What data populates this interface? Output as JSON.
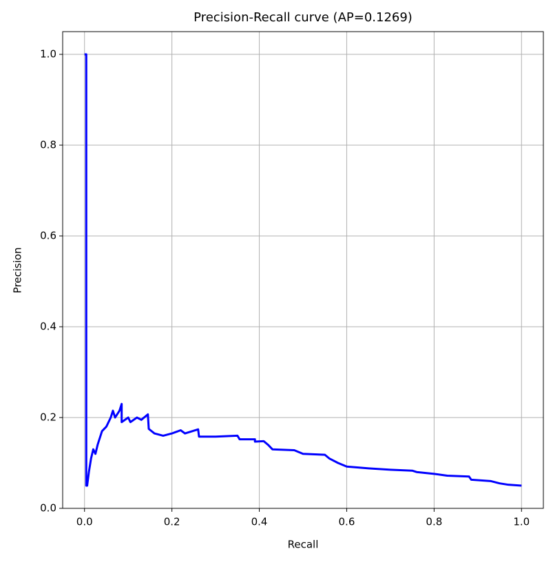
{
  "chart_data": {
    "type": "line",
    "title": "Precision-Recall curve (AP=0.1269)",
    "x_label": "Recall",
    "y_label": "Precision",
    "x": [
      0.0,
      0.004,
      0.004,
      0.006,
      0.01,
      0.015,
      0.02,
      0.025,
      0.03,
      0.04,
      0.05,
      0.06,
      0.065,
      0.07,
      0.08,
      0.085,
      0.085,
      0.1,
      0.105,
      0.12,
      0.13,
      0.145,
      0.147,
      0.16,
      0.18,
      0.2,
      0.22,
      0.23,
      0.26,
      0.262,
      0.3,
      0.35,
      0.355,
      0.39,
      0.39,
      0.41,
      0.42,
      0.43,
      0.48,
      0.5,
      0.55,
      0.56,
      0.58,
      0.6,
      0.65,
      0.7,
      0.75,
      0.76,
      0.8,
      0.83,
      0.88,
      0.885,
      0.93,
      0.95,
      0.97,
      1.0
    ],
    "series": [
      {
        "name": "Precision",
        "color": "#0000ff",
        "values": [
          1.0,
          1.0,
          0.05,
          0.05,
          0.08,
          0.11,
          0.13,
          0.12,
          0.14,
          0.17,
          0.18,
          0.2,
          0.215,
          0.2,
          0.215,
          0.23,
          0.19,
          0.2,
          0.19,
          0.2,
          0.195,
          0.207,
          0.175,
          0.165,
          0.16,
          0.165,
          0.172,
          0.165,
          0.174,
          0.158,
          0.158,
          0.16,
          0.152,
          0.152,
          0.147,
          0.148,
          0.14,
          0.13,
          0.128,
          0.12,
          0.118,
          0.11,
          0.1,
          0.092,
          0.088,
          0.085,
          0.083,
          0.08,
          0.076,
          0.072,
          0.07,
          0.063,
          0.06,
          0.055,
          0.052,
          0.05
        ]
      }
    ],
    "xlim": [
      -0.05,
      1.05
    ],
    "ylim": [
      0,
      1.05
    ],
    "xticks": [
      {
        "value": 0,
        "label": "0.0"
      },
      0.2,
      0.4,
      0.6,
      0.8,
      {
        "value": 1,
        "label": "1.0"
      }
    ],
    "yticks": [
      {
        "value": 0,
        "label": "0.0"
      },
      0.2,
      0.4,
      0.6,
      0.8,
      {
        "value": 1,
        "label": "1.0"
      }
    ],
    "grid": true
  }
}
